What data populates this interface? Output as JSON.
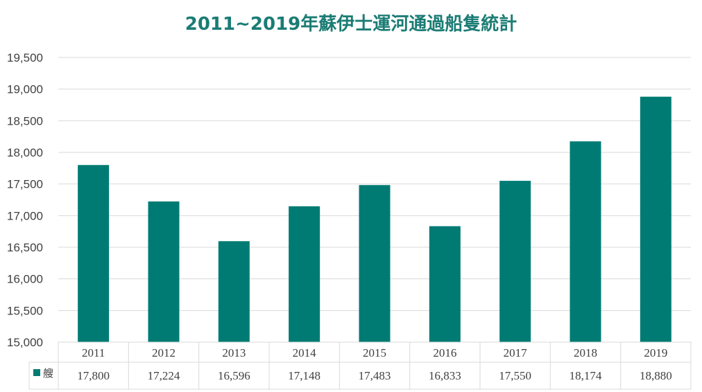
{
  "chart_data": {
    "type": "bar",
    "title": "2011~2019年蘇伊士運河通過船隻統計",
    "categories": [
      "2011",
      "2012",
      "2013",
      "2014",
      "2015",
      "2016",
      "2017",
      "2018",
      "2019"
    ],
    "series": [
      {
        "name": "艘",
        "values": [
          17800,
          17224,
          16596,
          17148,
          17483,
          16833,
          17550,
          18174,
          18880
        ],
        "labels": [
          "17,800",
          "17,224",
          "16,596",
          "17,148",
          "17,483",
          "16,833",
          "17,550",
          "18,174",
          "18,880"
        ],
        "color": "#007b74"
      }
    ],
    "ylim": [
      15000,
      19500
    ],
    "yticks": [
      15000,
      15500,
      16000,
      16500,
      17000,
      17500,
      18000,
      18500,
      19000,
      19500
    ],
    "ytick_labels": [
      "15,000",
      "15,500",
      "16,000",
      "16,500",
      "17,000",
      "17,500",
      "18,000",
      "18,500",
      "19,000",
      "19,500"
    ],
    "grid": true,
    "data_table": true,
    "colors": {
      "title": "#1b7c74",
      "bar": "#007b74",
      "grid": "#d9d9d9",
      "text": "#404040"
    }
  }
}
